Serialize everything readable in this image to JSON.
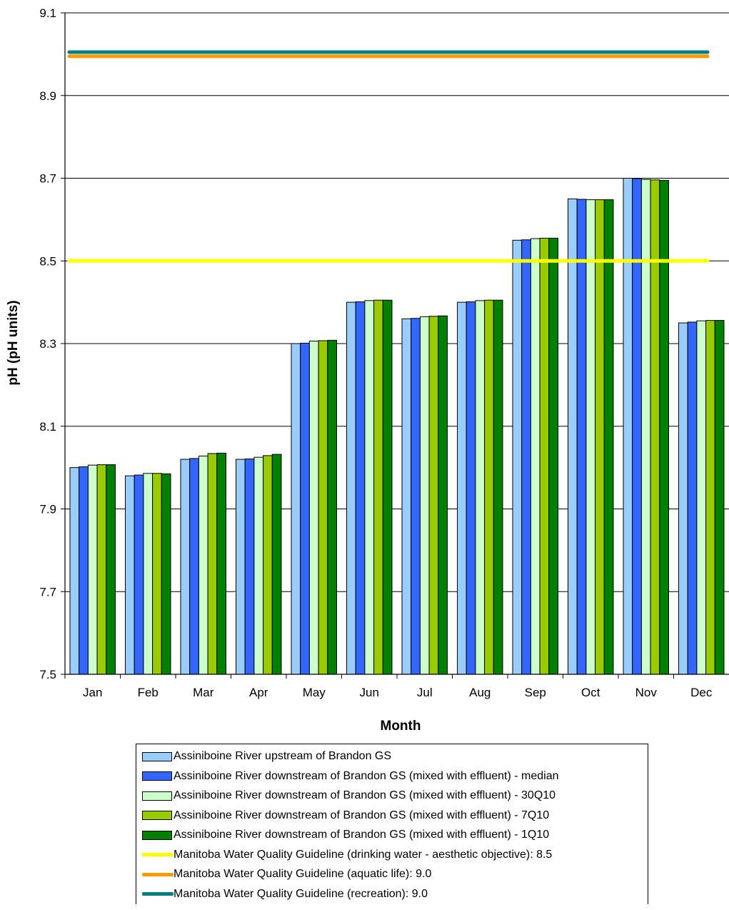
{
  "chart_data": {
    "type": "bar",
    "title": "",
    "xlabel": "Month",
    "ylabel": "pH (pH units)",
    "ylim": [
      7.5,
      9.1
    ],
    "yticks": [
      "7.5",
      "7.7",
      "7.9",
      "8.1",
      "8.3",
      "8.5",
      "8.7",
      "8.9",
      "9.1"
    ],
    "categories": [
      "Jan",
      "Feb",
      "Mar",
      "Apr",
      "May",
      "Jun",
      "Jul",
      "Aug",
      "Sep",
      "Oct",
      "Nov",
      "Dec"
    ],
    "grid": true,
    "legend_position": "bottom",
    "series": [
      {
        "name": "Assiniboine River upstream of Brandon GS",
        "color": "#99ccff",
        "values": [
          8.0,
          7.98,
          8.02,
          8.02,
          8.3,
          8.4,
          8.36,
          8.4,
          8.55,
          8.65,
          8.7,
          8.35
        ]
      },
      {
        "name": "Assiniboine River downstream of Brandon GS (mixed with effluent) - median",
        "color": "#3366ff",
        "values": [
          8.002,
          7.982,
          8.022,
          8.021,
          8.301,
          8.401,
          8.361,
          8.401,
          8.551,
          8.649,
          8.699,
          8.352
        ]
      },
      {
        "name": "Assiniboine River downstream of Brandon GS (mixed with effluent) - 30Q10",
        "color": "#ccffcc",
        "values": [
          8.006,
          7.986,
          8.028,
          8.025,
          8.306,
          8.404,
          8.365,
          8.404,
          8.554,
          8.648,
          8.697,
          8.355
        ]
      },
      {
        "name": "Assiniboine River downstream of Brandon GS (mixed with effluent) - 7Q10",
        "color": "#99cc00",
        "values": [
          8.007,
          7.986,
          8.034,
          8.029,
          8.307,
          8.405,
          8.366,
          8.405,
          8.555,
          8.648,
          8.696,
          8.356
        ]
      },
      {
        "name": "Assiniboine River downstream of Brandon GS (mixed with effluent) - 1Q10",
        "color": "#008000",
        "values": [
          8.007,
          7.985,
          8.035,
          8.032,
          8.308,
          8.405,
          8.367,
          8.405,
          8.555,
          8.648,
          8.695,
          8.356
        ]
      }
    ],
    "lines": [
      {
        "name": "Manitoba Water Quality Guideline (drinking water - aesthetic objective): 8.5",
        "color": "#ffff00",
        "value": 8.5
      },
      {
        "name": "Manitoba Water Quality Guideline (aquatic life): 9.0",
        "color": "#ff9900",
        "value": 8.995
      },
      {
        "name": "Manitoba Water Quality Guideline (recreation): 9.0",
        "color": "#008080",
        "value": 9.005
      }
    ]
  }
}
